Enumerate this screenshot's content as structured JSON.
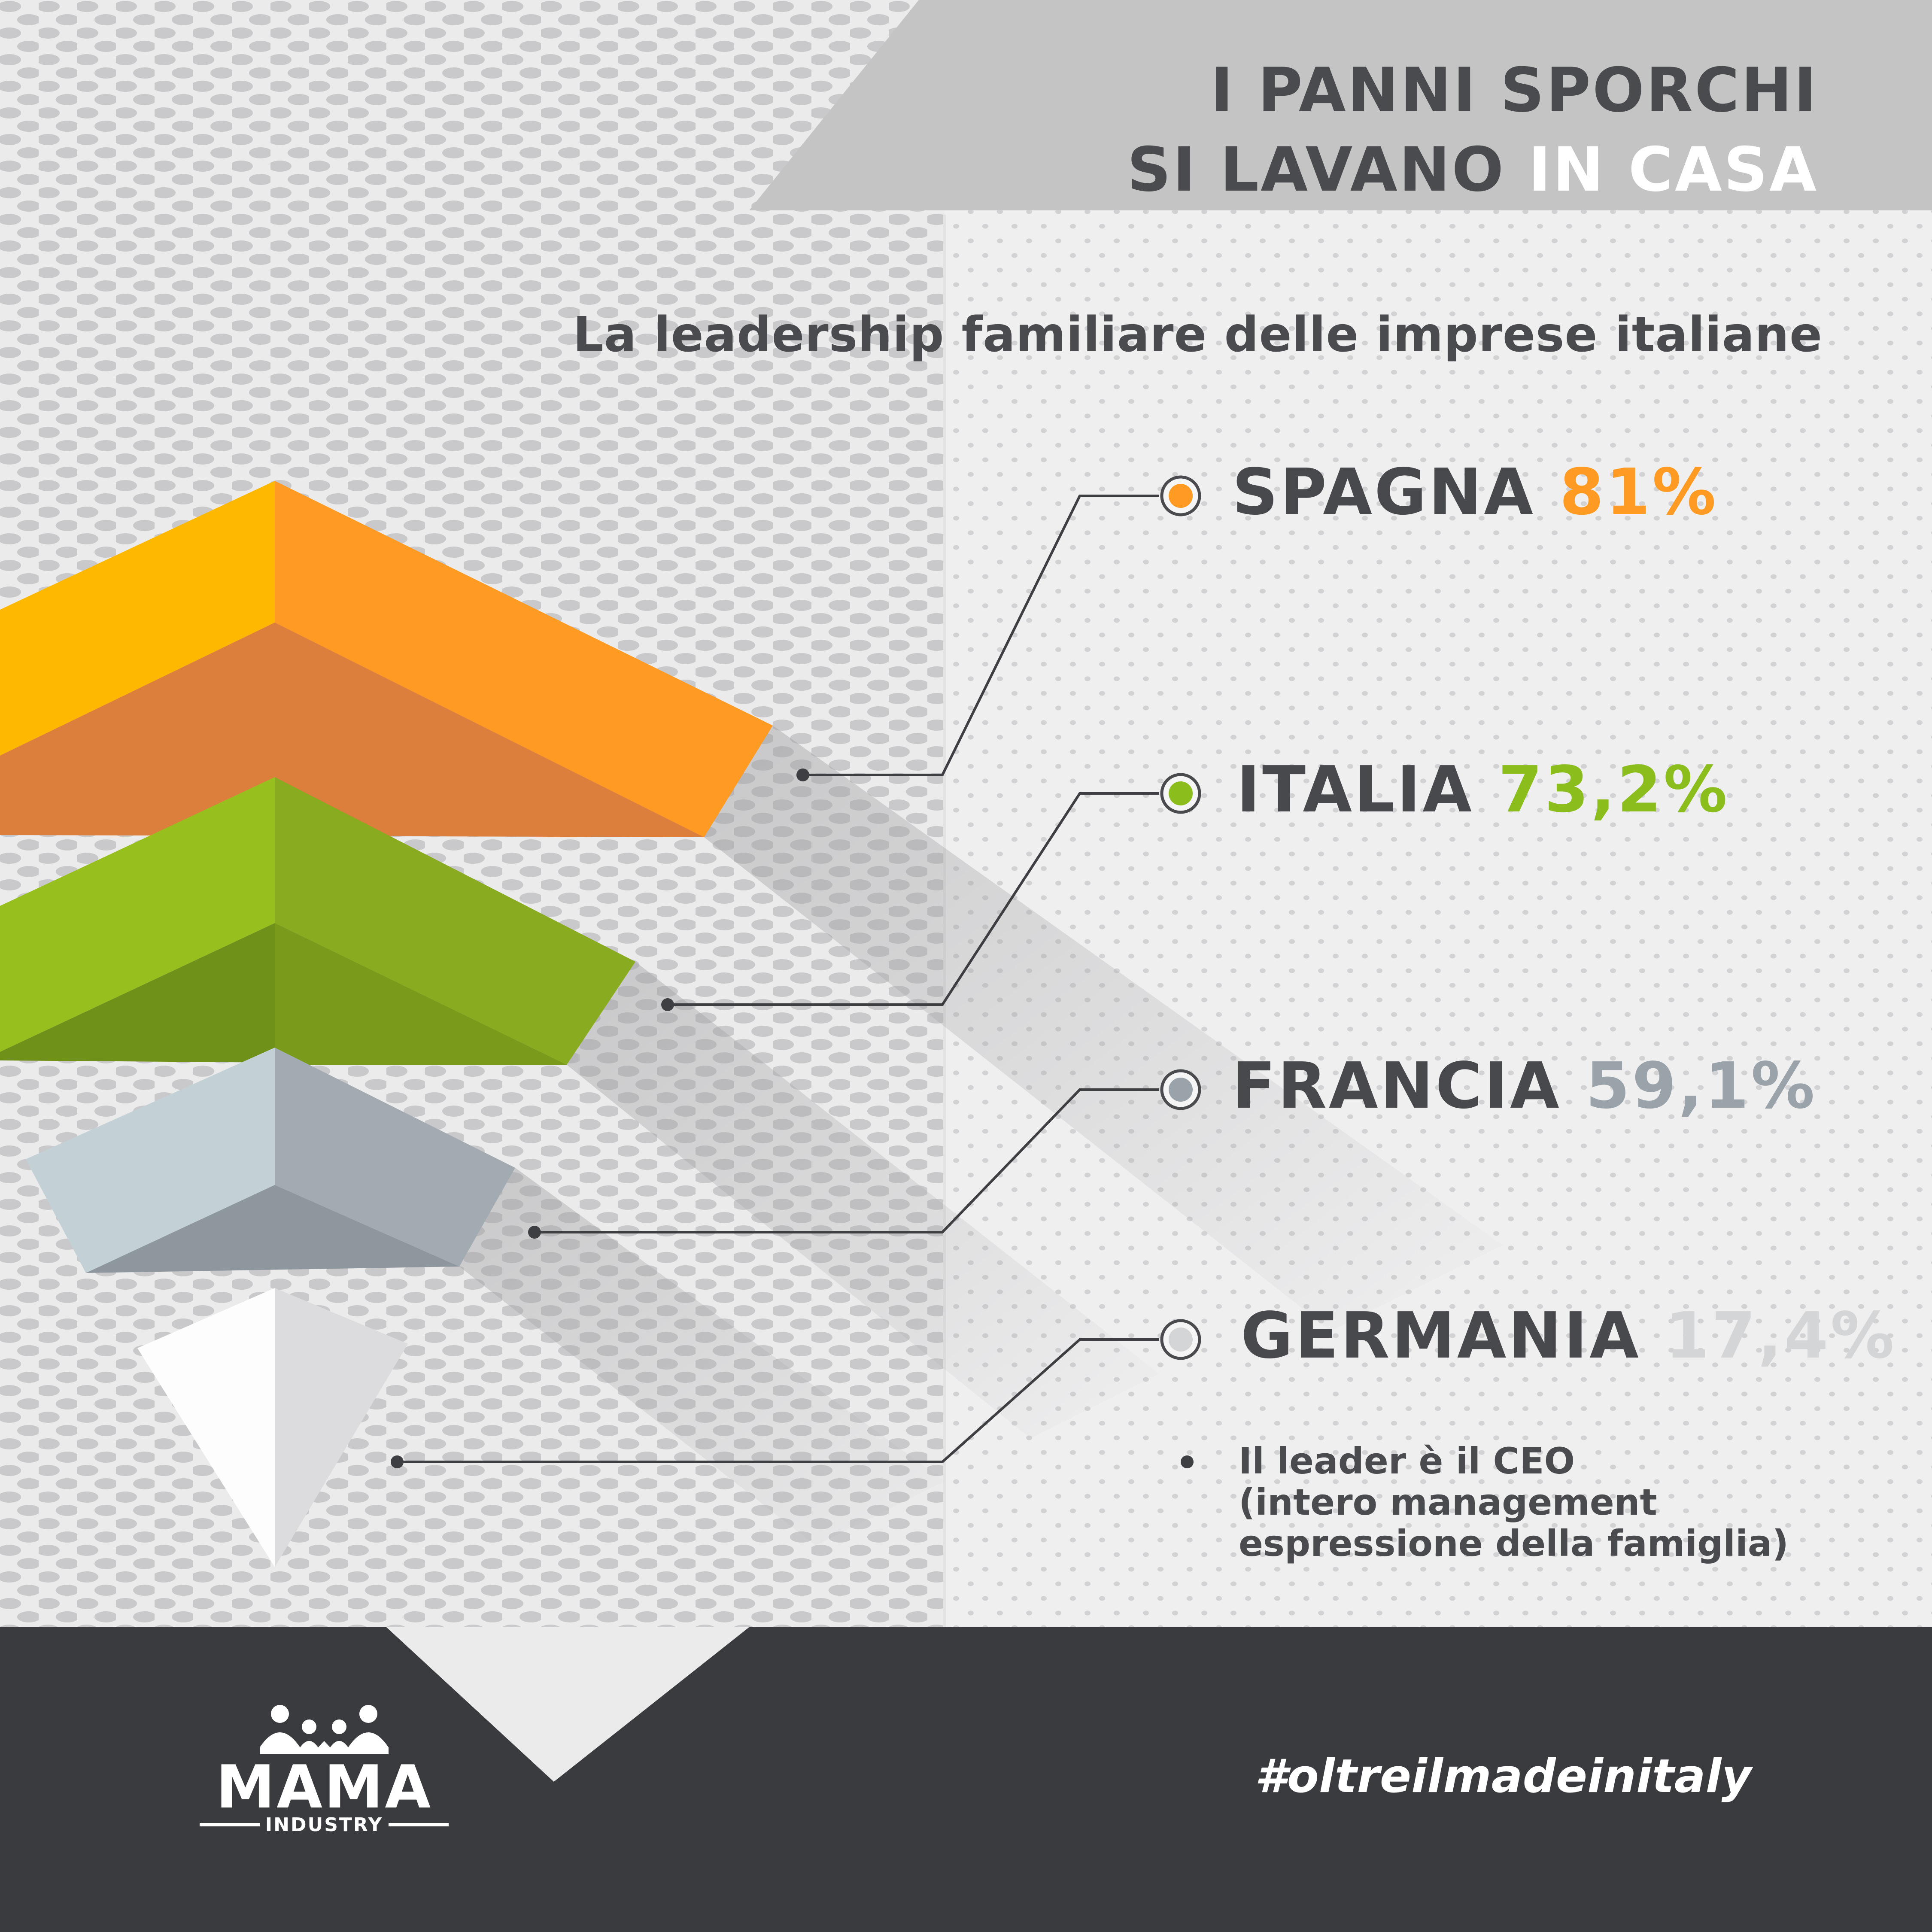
{
  "header": {
    "title_line1": "I PANNI SPORCHI",
    "title_line2_main": "SI LAVANO ",
    "title_line2_highlight": "IN CASA",
    "subtitle": "La leadership familiare delle imprese italiane"
  },
  "chart_data": {
    "type": "bar",
    "categories": [
      "SPAGNA",
      "ITALIA",
      "FRANCIA",
      "GERMANIA"
    ],
    "values": [
      81,
      73.2,
      59.1,
      17.4
    ],
    "value_labels": [
      "81%",
      "73,2%",
      "59,1%",
      "17,4%"
    ],
    "colors": [
      "#ff9a22",
      "#8bbd1c",
      "#9aa2aa",
      "#d4d5d7"
    ],
    "unit": "%"
  },
  "note": {
    "line1": "Il leader è il CEO",
    "line2": "(intero management",
    "line3": "espressione della famiglia)"
  },
  "footer": {
    "logo_word": "MAMA",
    "logo_sub": "INDUSTRY",
    "hashtag": "#oltreilmadeinitaly"
  },
  "colors": {
    "dark_band": "#3a3b3f",
    "header_band": "#c4c4c4",
    "text_dark": "#4a4b4f"
  }
}
